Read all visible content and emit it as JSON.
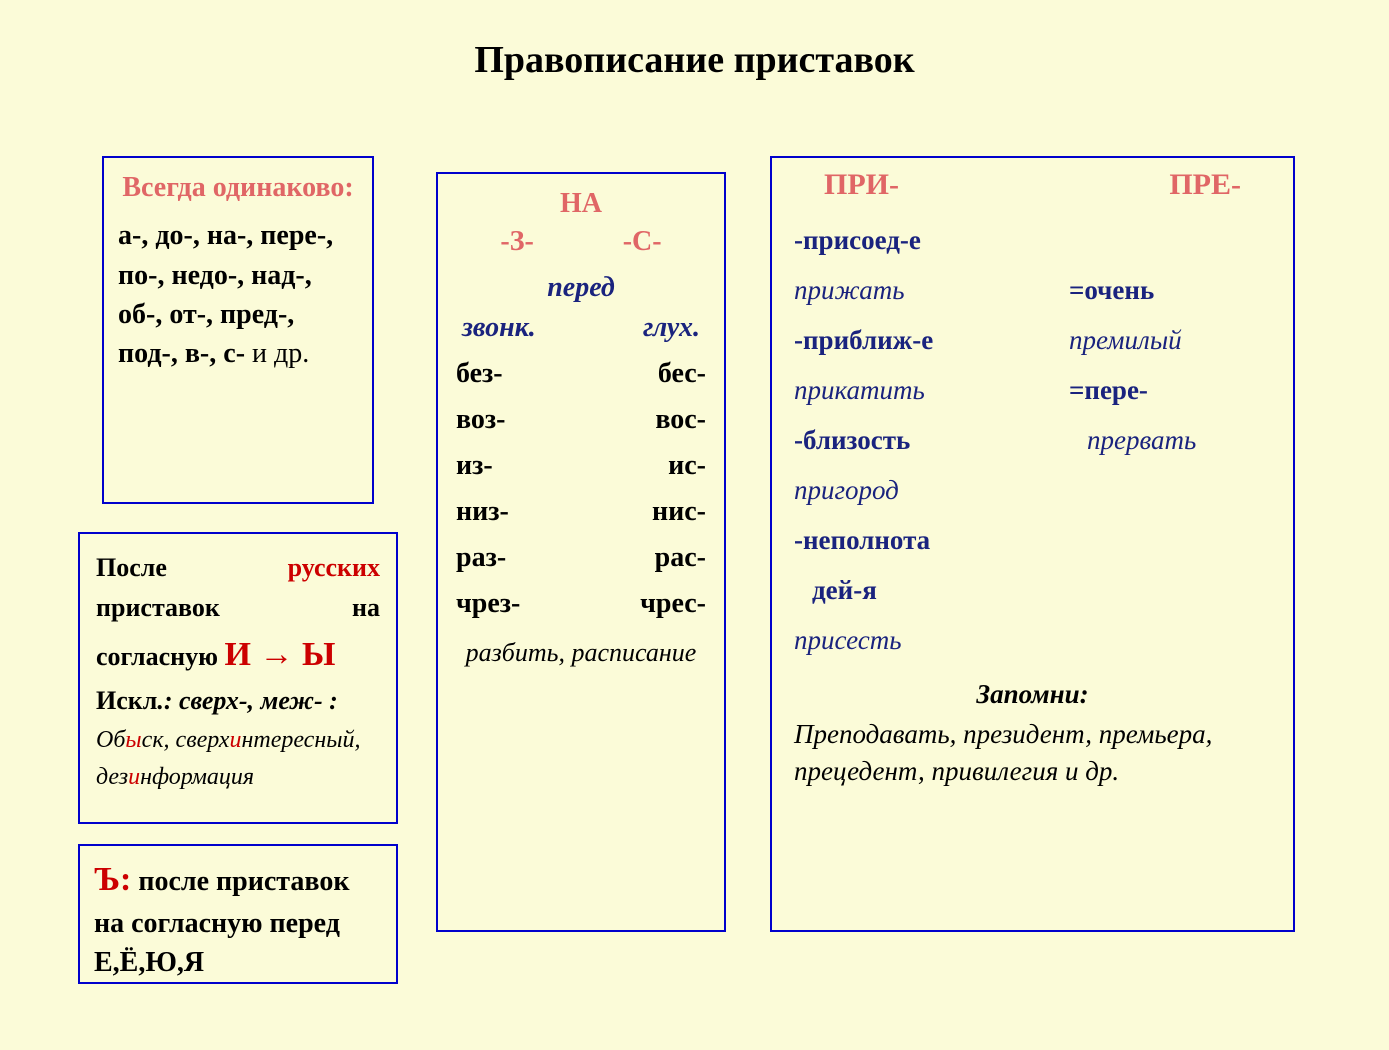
{
  "title": "Правописание приставок",
  "colors": {
    "background": "#fbfbd8",
    "border": "#0000cc",
    "heading_red": "#e06666",
    "bright_red": "#cc0000",
    "navy": "#1a237e",
    "black": "#000000"
  },
  "box1": {
    "header": "Всегда одинаково:",
    "body": "а-, до-, на-, пере-, по-, недо-, над-, об-, от-, пред-, под-, в-, с-",
    "tail": " и др."
  },
  "box2": {
    "line1_a": "После ",
    "line1_b": "русских",
    "line2_a": "приставок",
    "line2_b": "на",
    "line3_a": "согласную ",
    "line3_b": "И → Ы",
    "line4_a": "Искл",
    "line4_b": ".: сверх-, меж- :",
    "line5_a": "Об",
    "line5_b": "ы",
    "line5_c": "ск, сверх",
    "line5_d": "и",
    "line5_e": "нтересный,",
    "line6_a": "дез",
    "line6_b": "и",
    "line6_c": "нформация"
  },
  "box3": {
    "lead": "Ъ:",
    "rest": " после приставок на согласную перед Е,Ё,Ю,Я"
  },
  "box4": {
    "na": "НА",
    "z": "-З-",
    "s": "-С-",
    "pered": "перед",
    "zvonk": "звонк.",
    "glukh": "глух.",
    "rows": [
      [
        "без-",
        "бес-"
      ],
      [
        "воз-",
        "вос-"
      ],
      [
        "из-",
        "ис-"
      ],
      [
        "низ-",
        "нис-"
      ],
      [
        "раз-",
        "рас-"
      ],
      [
        "чрез-",
        "чрес-"
      ]
    ],
    "example": "разбить, расписание"
  },
  "box5": {
    "pri": "ПРИ-",
    "pre": "ПРЕ-",
    "rows": [
      {
        "left": "-присоед-е",
        "left_style": "navy-b",
        "right": "",
        "right_style": ""
      },
      {
        "left": "прижать",
        "left_style": "navy ital",
        "right": "=очень",
        "right_style": "navy-b"
      },
      {
        "left": "-приближ-е",
        "left_style": "navy-b",
        "right": "премилый",
        "right_style": "navy ital"
      },
      {
        "left": "прикатить",
        "left_style": "navy ital",
        "right": "=пере-",
        "right_style": "navy-b"
      },
      {
        "left": "-близость",
        "left_style": "navy-b",
        "right": "прервать",
        "right_style": "navy ital",
        "right_pad": "18"
      },
      {
        "left": "пригород",
        "left_style": "navy ital",
        "right": "",
        "right_style": ""
      },
      {
        "left": "-неполнота",
        "left_style": "navy-b",
        "right": "",
        "right_style": ""
      },
      {
        "left": "  дей-я",
        "left_style": "navy-b",
        "right": "",
        "right_style": "",
        "left_pad": "18"
      },
      {
        "left": "присесть",
        "left_style": "navy ital",
        "right": "",
        "right_style": ""
      }
    ],
    "zapomni": "Запомни:",
    "list": "Преподавать, президент, премьера, прецедент, привилегия и др."
  }
}
